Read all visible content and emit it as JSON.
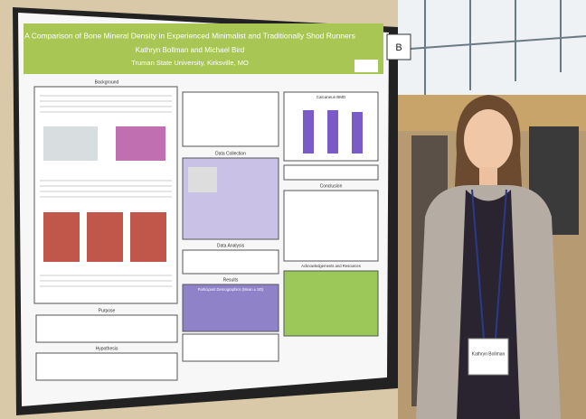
{
  "poster": {
    "title": "A Comparison of Bone Mineral Density in Experienced Minimalist and Traditionally Shod Runners",
    "authors": "Kathryn Bollman and Michael Bird",
    "affiliation": "Truman State University, Kirksville, MO",
    "sections": {
      "background": "Background",
      "data_collection": "Data Collection",
      "data_analysis": "Data Analysis",
      "results": "Results",
      "purpose": "Purpose",
      "hypothesis": "Hypothesis",
      "conclusion": "Conclusion",
      "acknowledgements": "Acknowledgements and Resources"
    },
    "table_title": "Participant Demographics (Mean ± SD)",
    "chart_title": "Calcaneus BMD"
  },
  "board_label": "B",
  "name_tag": "Kathryn Bollman"
}
